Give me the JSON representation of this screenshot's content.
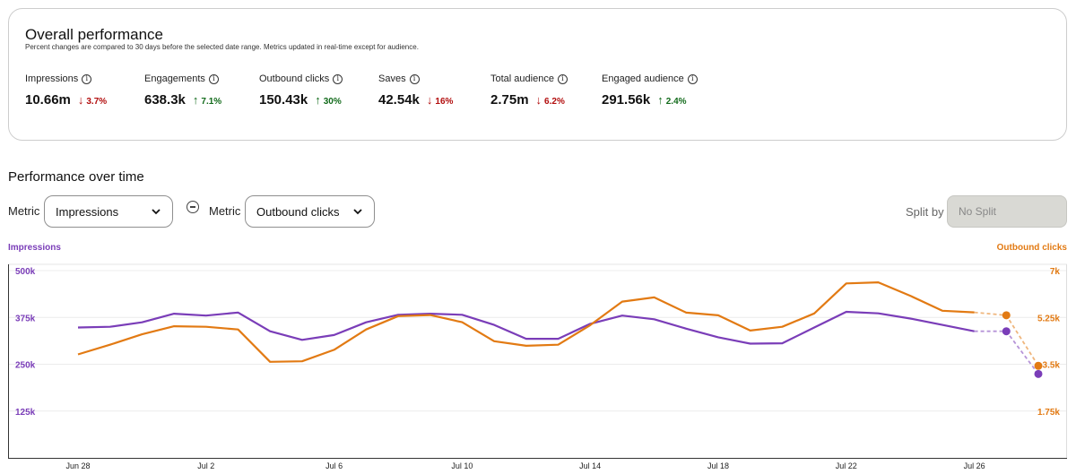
{
  "overview": {
    "title": "Overall performance",
    "subtitle": "Percent changes are compared to 30 days before the selected date range. Metrics updated in real-time except for audience.",
    "metrics": [
      {
        "label": "Impressions",
        "value": "10.66m",
        "change": "3.7%",
        "direction": "down"
      },
      {
        "label": "Engagements",
        "value": "638.3k",
        "change": "7.1%",
        "direction": "up"
      },
      {
        "label": "Outbound clicks",
        "value": "150.43k",
        "change": "30%",
        "direction": "up"
      },
      {
        "label": "Saves",
        "value": "42.54k",
        "change": "16%",
        "direction": "down"
      },
      {
        "label": "Total audience",
        "value": "2.75m",
        "change": "6.2%",
        "direction": "down"
      },
      {
        "label": "Engaged audience",
        "value": "291.56k",
        "change": "2.4%",
        "direction": "up"
      }
    ]
  },
  "performance": {
    "title": "Performance over time",
    "metric_label": "Metric",
    "metric1_value": "Impressions",
    "metric2_value": "Outbound clicks",
    "split_label": "Split by",
    "split_value": "No Split"
  },
  "chart_data": {
    "type": "line",
    "left_axis_title": "Impressions",
    "right_axis_title": "Outbound clicks",
    "left_ticks": [
      "500k",
      "375k",
      "250k",
      "125k"
    ],
    "right_ticks": [
      "7k",
      "5.25k",
      "3.5k",
      "1.75k"
    ],
    "left_ylim": [
      0,
      500000
    ],
    "right_ylim": [
      0,
      7000
    ],
    "x_tick_labels": [
      "Jun 28",
      "Jul 2",
      "Jul 6",
      "Jul 10",
      "Jul 14",
      "Jul 18",
      "Jul 22",
      "Jul 26"
    ],
    "x_tick_days": [
      0,
      4,
      8,
      12,
      16,
      20,
      24,
      28
    ],
    "series": [
      {
        "name": "Impressions",
        "axis": "left",
        "color": "#7a3db8",
        "days": [
          0,
          1,
          2,
          3,
          4,
          5,
          6,
          7,
          8,
          9,
          10,
          11,
          12,
          13,
          14,
          15,
          16,
          17,
          18,
          19,
          20,
          21,
          22,
          23,
          24,
          25,
          26,
          27,
          28
        ],
        "values": [
          348000,
          350000,
          362000,
          385000,
          380000,
          388000,
          338000,
          315000,
          328000,
          362000,
          382000,
          385000,
          382000,
          355000,
          318000,
          318000,
          358000,
          380000,
          370000,
          345000,
          322000,
          305000,
          306000,
          348000,
          390000,
          386000,
          372000,
          355000,
          338000
        ],
        "projected_days": [
          28,
          29,
          30
        ],
        "projected_values": [
          338000,
          338000,
          224000
        ]
      },
      {
        "name": "Outbound clicks",
        "axis": "right",
        "color": "#e27a13",
        "days": [
          0,
          1,
          2,
          3,
          4,
          5,
          6,
          7,
          8,
          9,
          10,
          11,
          12,
          13,
          14,
          15,
          16,
          17,
          18,
          19,
          20,
          21,
          22,
          23,
          24,
          25,
          26,
          27,
          28
        ],
        "values": [
          3870,
          4230,
          4620,
          4920,
          4900,
          4800,
          3590,
          3610,
          4040,
          4800,
          5300,
          5340,
          5070,
          4360,
          4190,
          4230,
          4960,
          5840,
          6000,
          5430,
          5330,
          4760,
          4900,
          5400,
          6520,
          6560,
          6060,
          5500,
          5440
        ],
        "projected_days": [
          28,
          29,
          30
        ],
        "projected_values": [
          5440,
          5330,
          3440
        ]
      }
    ]
  },
  "colors": {
    "impressions": "#7a3db8",
    "outbound_clicks": "#e27a13",
    "down": "#b20d0d",
    "up": "#136b1c"
  }
}
